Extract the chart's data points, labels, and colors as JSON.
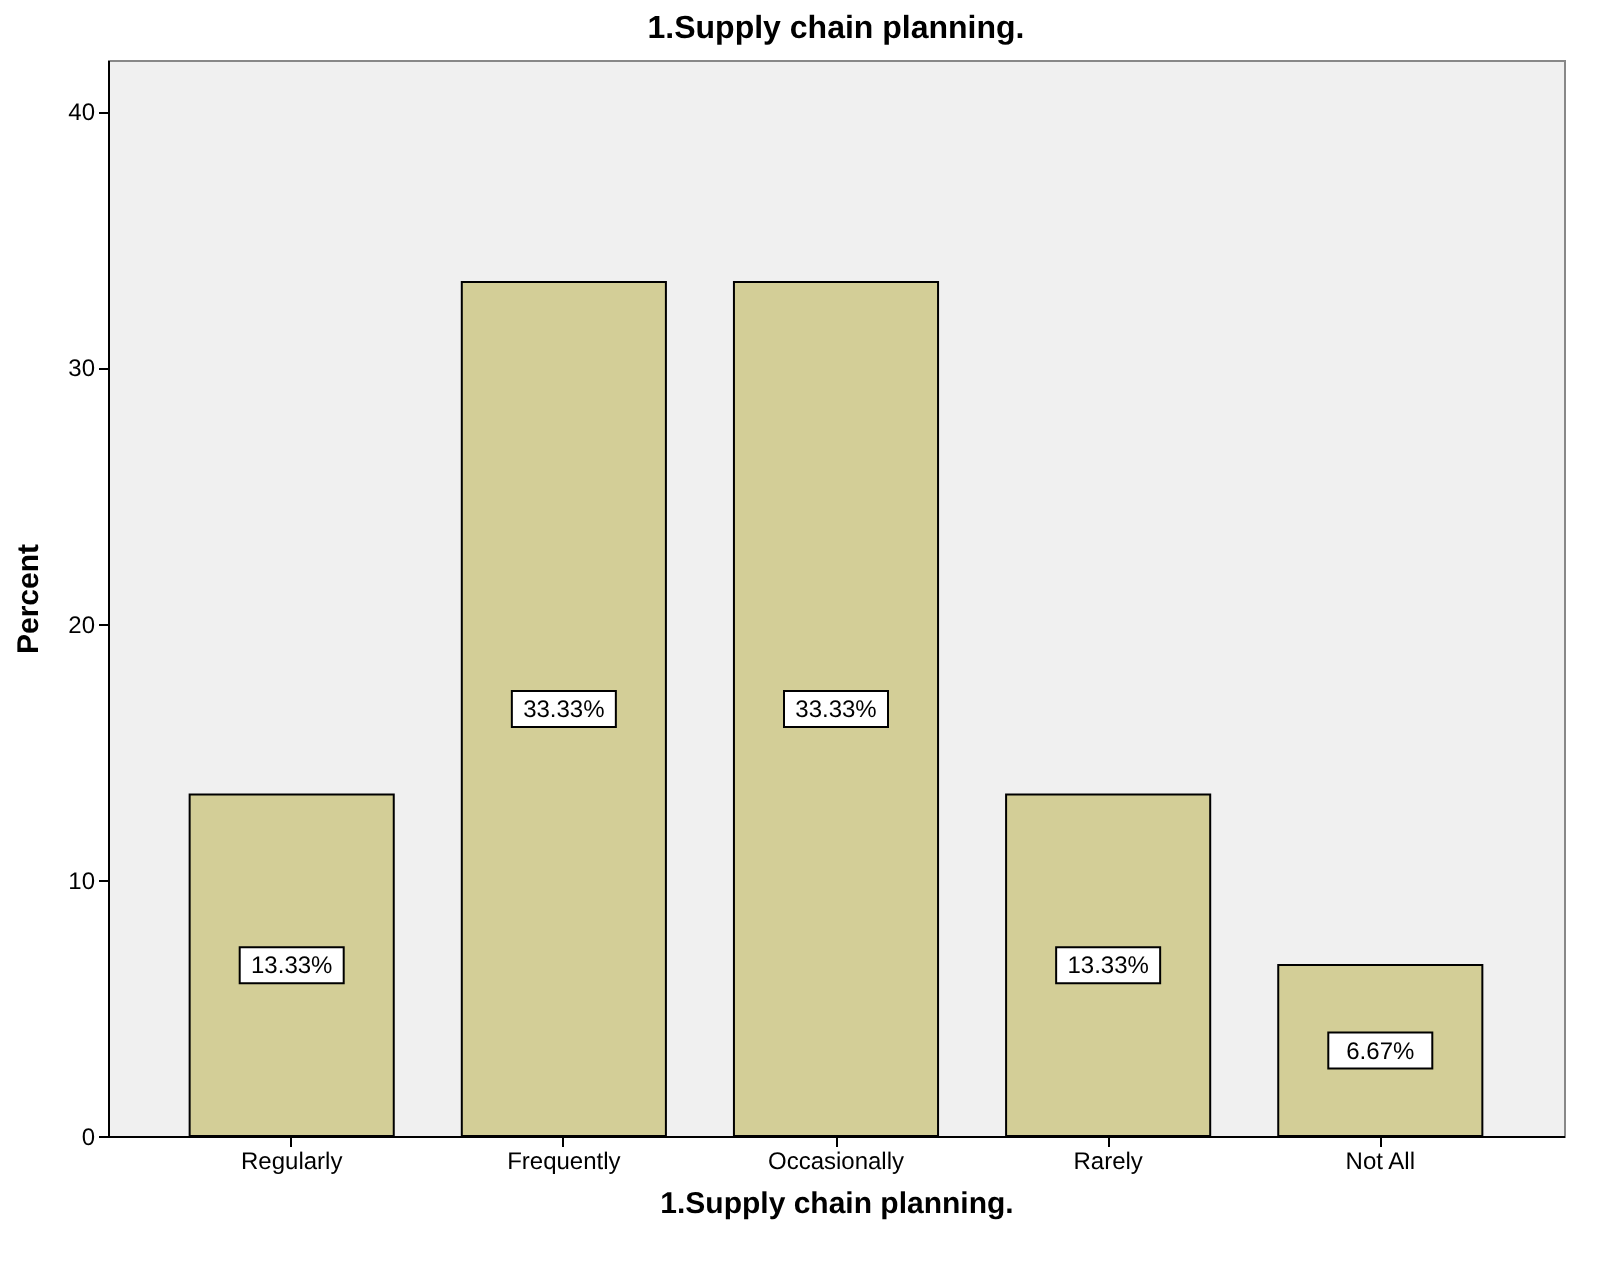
{
  "chart_data": {
    "type": "bar",
    "title": "1.Supply chain planning.",
    "xlabel": "1.Supply chain planning.",
    "ylabel": "Percent",
    "categories": [
      "Regularly",
      "Frequently",
      "Occasionally",
      "Rarely",
      "Not All"
    ],
    "values": [
      13.33,
      33.33,
      33.33,
      13.33,
      6.67
    ],
    "value_labels": [
      "13.33%",
      "33.33%",
      "33.33%",
      "13.33%",
      "6.67%"
    ],
    "color": "#d3ce97",
    "ylim": [
      0,
      42
    ],
    "yticks": [
      0,
      10,
      20,
      30,
      40
    ]
  }
}
